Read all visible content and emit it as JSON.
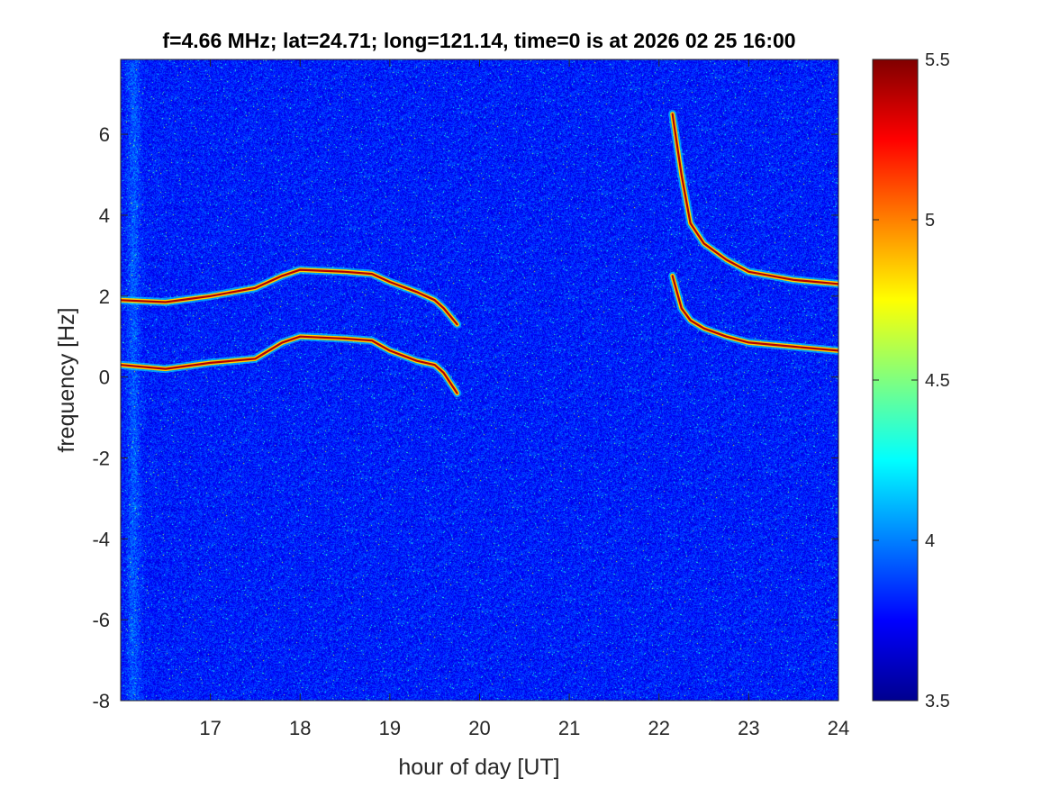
{
  "chart_data": {
    "type": "heatmap",
    "title": "f=4.66 MHz;  lat=24.71; long=121.14, time=0 is at 2026 02 25 16:00",
    "xlabel": "hour of day [UT]",
    "ylabel": "frequency [Hz]",
    "xlim": [
      16,
      24
    ],
    "ylim": [
      -8,
      7.85
    ],
    "x_ticks": [
      17,
      18,
      19,
      20,
      21,
      22,
      23,
      24
    ],
    "x_tick_labels": [
      "17",
      "18",
      "19",
      "20",
      "21",
      "22",
      "23",
      "24"
    ],
    "y_ticks": [
      -8,
      -6,
      -4,
      -2,
      0,
      2,
      4,
      6
    ],
    "y_tick_labels": [
      "-8",
      "-6",
      "-4",
      "-2",
      "0",
      "2",
      "4",
      "6"
    ],
    "colormap": "jet",
    "clim": [
      3.5,
      5.5
    ],
    "colorbar_ticks": [
      3.5,
      4,
      4.5,
      5,
      5.5
    ],
    "colorbar_tick_labels": [
      "3.5",
      "4",
      "4.5",
      "5",
      "5.5"
    ],
    "background_level": 3.8,
    "traces": [
      {
        "x": [
          16.0,
          16.5,
          17.0,
          17.5,
          17.8,
          18.0,
          18.5,
          18.8,
          19.0,
          19.3,
          19.5,
          19.6,
          19.75
        ],
        "y": [
          1.9,
          1.85,
          2.0,
          2.2,
          2.5,
          2.65,
          2.6,
          2.55,
          2.35,
          2.1,
          1.9,
          1.7,
          1.3
        ]
      },
      {
        "x": [
          16.0,
          16.5,
          17.0,
          17.5,
          17.8,
          18.0,
          18.5,
          18.8,
          19.0,
          19.3,
          19.5,
          19.6,
          19.75
        ],
        "y": [
          0.3,
          0.2,
          0.35,
          0.45,
          0.85,
          1.0,
          0.95,
          0.9,
          0.65,
          0.4,
          0.3,
          0.1,
          -0.4
        ]
      },
      {
        "x": [
          22.15,
          22.25,
          22.35,
          22.5,
          22.75,
          23.0,
          23.5,
          24.0
        ],
        "y": [
          6.5,
          5.0,
          3.8,
          3.3,
          2.9,
          2.6,
          2.4,
          2.3
        ]
      },
      {
        "x": [
          22.15,
          22.25,
          22.35,
          22.5,
          22.75,
          23.0,
          23.5,
          24.0
        ],
        "y": [
          2.5,
          1.7,
          1.4,
          1.2,
          1.0,
          0.85,
          0.75,
          0.65
        ]
      }
    ]
  }
}
